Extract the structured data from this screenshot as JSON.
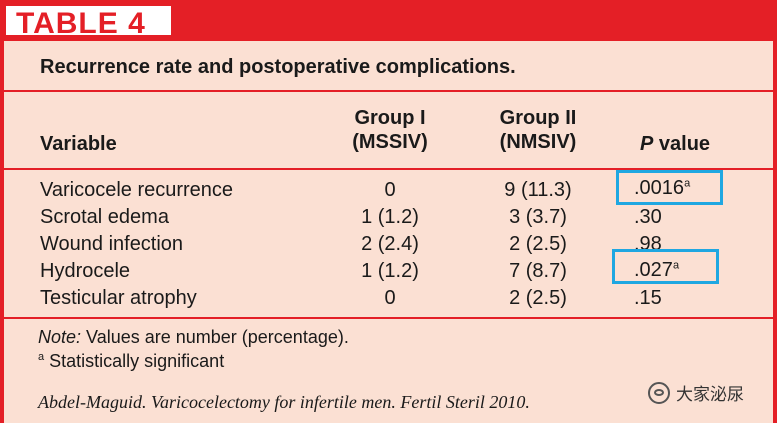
{
  "table": {
    "tag": "TABLE 4",
    "caption": "Recurrence rate and postoperative complications.",
    "headers": {
      "variable": "Variable",
      "group1_line1": "Group I",
      "group1_line2": "(MSSIV)",
      "group2_line1": "Group II",
      "group2_line2": "(NMSIV)",
      "p_italic": "P",
      "p_rest": " value"
    },
    "rows": [
      {
        "variable": "Varicocele recurrence",
        "group1": "0",
        "group2": "9 (11.3)",
        "p": ".0016",
        "sup": "a"
      },
      {
        "variable": "Scrotal edema",
        "group1": "1 (1.2)",
        "group2": "3 (3.7)",
        "p": ".30",
        "sup": ""
      },
      {
        "variable": "Wound infection",
        "group1": "2 (2.4)",
        "group2": "2 (2.5)",
        "p": ".98",
        "sup": ""
      },
      {
        "variable": "Hydrocele",
        "group1": "1 (1.2)",
        "group2": "7 (8.7)",
        "p": ".027",
        "sup": "a"
      },
      {
        "variable": "Testicular atrophy",
        "group1": "0",
        "group2": "2 (2.5)",
        "p": ".15",
        "sup": ""
      }
    ],
    "note_label": "Note:",
    "note_text": " Values are number (percentage).",
    "footnote_mark": "a",
    "footnote_text": " Statistically significant",
    "citation": "Abdel-Maguid. Varicocelectomy for infertile men. Fertil Steril 2010."
  },
  "watermark": {
    "text": "大家泌尿",
    "icon": "wechat-icon"
  },
  "colors": {
    "accent_red": "#e41f26",
    "panel_bg": "#fbe0d3",
    "highlight_blue": "#1fa7e1"
  }
}
